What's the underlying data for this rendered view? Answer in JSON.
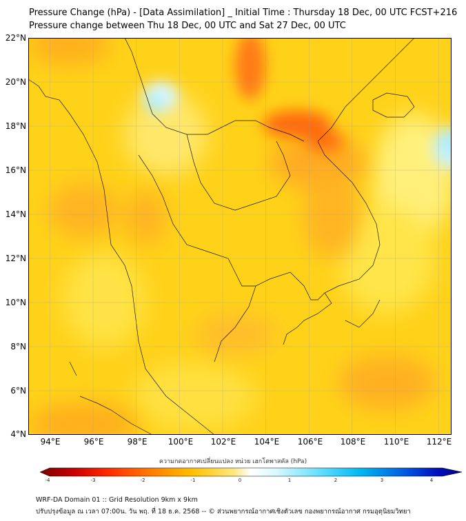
{
  "header": {
    "title_line1": "Pressure Change (hPa) - [Data Assimilation] _ Initial Time : Thursday 18 Dec, 00 UTC FCST+216",
    "title_line2": "Pressure change between Thu 18 Dec, 00 UTC and Sat 27 Dec, 00 UTC"
  },
  "map": {
    "lat_range": [
      4,
      22
    ],
    "lon_range": [
      93,
      112.6
    ],
    "lat_ticks": [
      "22°N",
      "20°N",
      "18°N",
      "16°N",
      "14°N",
      "12°N",
      "10°N",
      "8°N",
      "6°N",
      "4°N"
    ],
    "lon_ticks": [
      "94°E",
      "96°E",
      "98°E",
      "100°E",
      "102°E",
      "104°E",
      "106°E",
      "108°E",
      "110°E",
      "112°E"
    ],
    "gridlines": true,
    "base_color": "#ffd21a",
    "colors": {
      "orange": "#ff9a1a",
      "deep_orange": "#ff6a10",
      "light_blue": "#bfefff",
      "cyan": "#8fe6ff"
    }
  },
  "colorbar": {
    "label": "ความกดอากาศเปลี่ยนแปลง หน่วย เฮกโตพาสคัล (hPa)",
    "ticks": [
      "-4",
      "-3",
      "-2",
      "-1",
      "0",
      "1",
      "2",
      "3",
      "4"
    ],
    "range": [
      -4,
      4
    ]
  },
  "footer": {
    "line1": "WRF-DA Domain 01 :: Grid Resolution 9km x 9km",
    "line2": "ปรับปรุงข้อมูล ณ เวลา 07:00น. วัน พฤ. ที่ 18 ธ.ค. 2568 -- © ส่วนพยากรณ์อากาศเชิงตัวเลข กองพยากรณ์อากาศ กรมอุตุนิยมวิทยา"
  }
}
